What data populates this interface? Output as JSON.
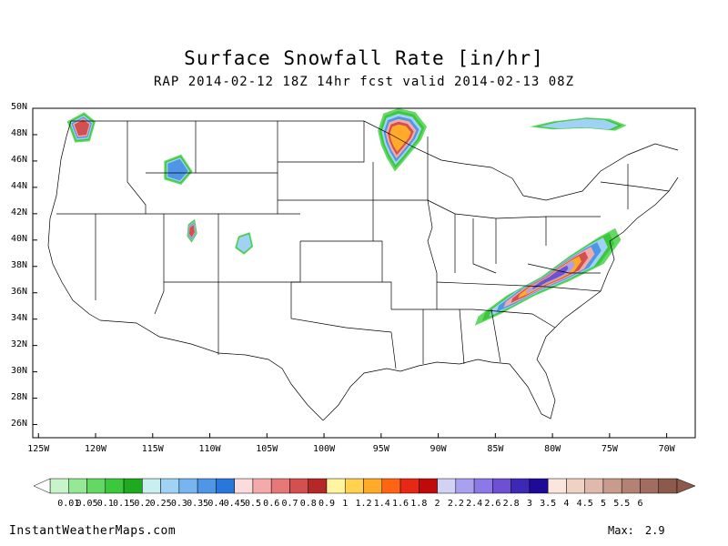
{
  "title": "Surface Snowfall Rate [in/hr]",
  "subtitle": "RAP 2014-02-12 18Z 14hr fcst valid 2014-02-13 08Z",
  "latitude_labels": [
    "50N",
    "48N",
    "46N",
    "44N",
    "42N",
    "40N",
    "38N",
    "36N",
    "34N",
    "32N",
    "30N",
    "28N",
    "26N"
  ],
  "longitude_labels": [
    "125W",
    "120W",
    "115W",
    "110W",
    "105W",
    "100W",
    "95W",
    "90W",
    "85W",
    "80W",
    "75W",
    "70W"
  ],
  "colorbar": {
    "labels": [
      "0.01",
      "0.05",
      "0.1",
      "0.15",
      "0.2",
      "0.25",
      "0.3",
      "0.35",
      "0.4",
      "0.45",
      "0.5",
      "0.6",
      "0.7",
      "0.8",
      "0.9",
      "1",
      "1.2",
      "1.4",
      "1.6",
      "1.8",
      "2",
      "2.2",
      "2.4",
      "2.6",
      "2.8",
      "3",
      "3.5",
      "4",
      "4.5",
      "5",
      "5.5",
      "6"
    ],
    "colors": [
      "#c8f5c8",
      "#96e896",
      "#64d864",
      "#3cc83c",
      "#1eaa1e",
      "#c8f0f0",
      "#a0d2f5",
      "#78b4f0",
      "#5096e6",
      "#2878dc",
      "#fadcdc",
      "#f5aaaa",
      "#e67878",
      "#d25050",
      "#b42828",
      "#fff5a0",
      "#ffd250",
      "#ffaa28",
      "#ff6414",
      "#e62814",
      "#be0a0a",
      "#d2d2f5",
      "#aaa0f0",
      "#8c78e6",
      "#6e50d2",
      "#3c28b4",
      "#1e0a96",
      "#fae6dc",
      "#f0d2c3",
      "#e1b9aa",
      "#c89b8c",
      "#b48273",
      "#a06e5f",
      "#8c5a4b"
    ]
  },
  "snow_regions": [
    {
      "name": "southern-canada",
      "lon": [
        -93.8,
        -94.5,
        -95.0,
        -95.3,
        -94.8,
        -93.5,
        -92.0,
        -91.0,
        -91.5,
        -93.0
      ],
      "lat": [
        45.2,
        46.2,
        47.2,
        48.3,
        49.6,
        50.0,
        49.7,
        48.6,
        47.6,
        46.0
      ],
      "peak": 1.8
    },
    {
      "name": "canada-east-band",
      "lon": [
        -82.0,
        -80.0,
        -77.0,
        -75.0,
        -73.5,
        -74.5,
        -77.0,
        -80.0
      ],
      "lat": [
        48.6,
        49.0,
        49.3,
        49.2,
        48.7,
        48.3,
        48.5,
        48.4
      ],
      "peak": 0.4
    },
    {
      "name": "washington-cascades",
      "lon": [
        -122.5,
        -121.0,
        -120.0,
        -120.5,
        -121.8
      ],
      "lat": [
        49.0,
        49.7,
        49.0,
        47.5,
        47.4
      ],
      "peak": 1.2
    },
    {
      "name": "northern-rockies",
      "lon": [
        -114.0,
        -112.5,
        -111.5,
        -112.5,
        -114.0
      ],
      "lat": [
        46.0,
        46.5,
        45.2,
        44.2,
        44.6
      ],
      "peak": 0.5
    },
    {
      "name": "wasatch",
      "lon": [
        -111.9,
        -111.3,
        -111.1,
        -111.6,
        -112.0
      ],
      "lat": [
        41.2,
        41.6,
        40.5,
        39.8,
        40.3
      ],
      "peak": 1.6
    },
    {
      "name": "colorado-rockies",
      "lon": [
        -107.5,
        -106.5,
        -106.2,
        -107.0,
        -107.8
      ],
      "lat": [
        40.3,
        40.6,
        39.5,
        38.9,
        39.4
      ],
      "peak": 0.4
    },
    {
      "name": "mid-atlantic-nor'easter",
      "lon": [
        -86.5,
        -84.0,
        -81.0,
        -78.5,
        -76.0,
        -74.5,
        -74.0,
        -75.5,
        -78.5,
        -81.5,
        -84.5,
        -86.8
      ],
      "lat": [
        34.2,
        35.8,
        37.2,
        38.8,
        40.2,
        40.9,
        40.0,
        38.2,
        36.9,
        35.8,
        34.4,
        33.5
      ],
      "peak": 2.9
    }
  ],
  "site_label": "InstantWeatherMaps.com",
  "max_label": "Max:",
  "max_value": "2.9"
}
